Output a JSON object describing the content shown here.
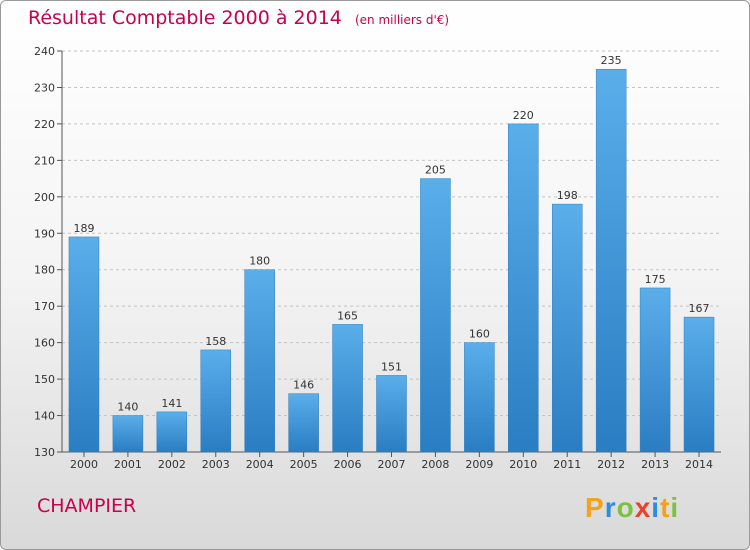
{
  "header": {
    "title": "Résultat Comptable 2000 à 2014",
    "subtitle": "(en milliers d'€)"
  },
  "footer": {
    "commune": "CHAMPIER",
    "logo_text": "Proxiti"
  },
  "colors": {
    "title": "#c8004e",
    "bar_top": "#5aaeea",
    "bar_bottom": "#2a7dc2"
  },
  "chart_data": {
    "type": "bar",
    "categories": [
      "2000",
      "2001",
      "2002",
      "2003",
      "2004",
      "2005",
      "2006",
      "2007",
      "2008",
      "2009",
      "2010",
      "2011",
      "2012",
      "2013",
      "2014"
    ],
    "values": [
      189,
      140,
      141,
      158,
      180,
      146,
      165,
      151,
      205,
      160,
      220,
      198,
      235,
      175,
      167
    ],
    "title": "Résultat Comptable 2000 à 2014",
    "xlabel": "",
    "ylabel": "",
    "ylim": [
      130,
      240
    ],
    "yticks": [
      130,
      140,
      150,
      160,
      170,
      180,
      190,
      200,
      210,
      220,
      230,
      240
    ],
    "grid": true,
    "data_labels": true
  }
}
